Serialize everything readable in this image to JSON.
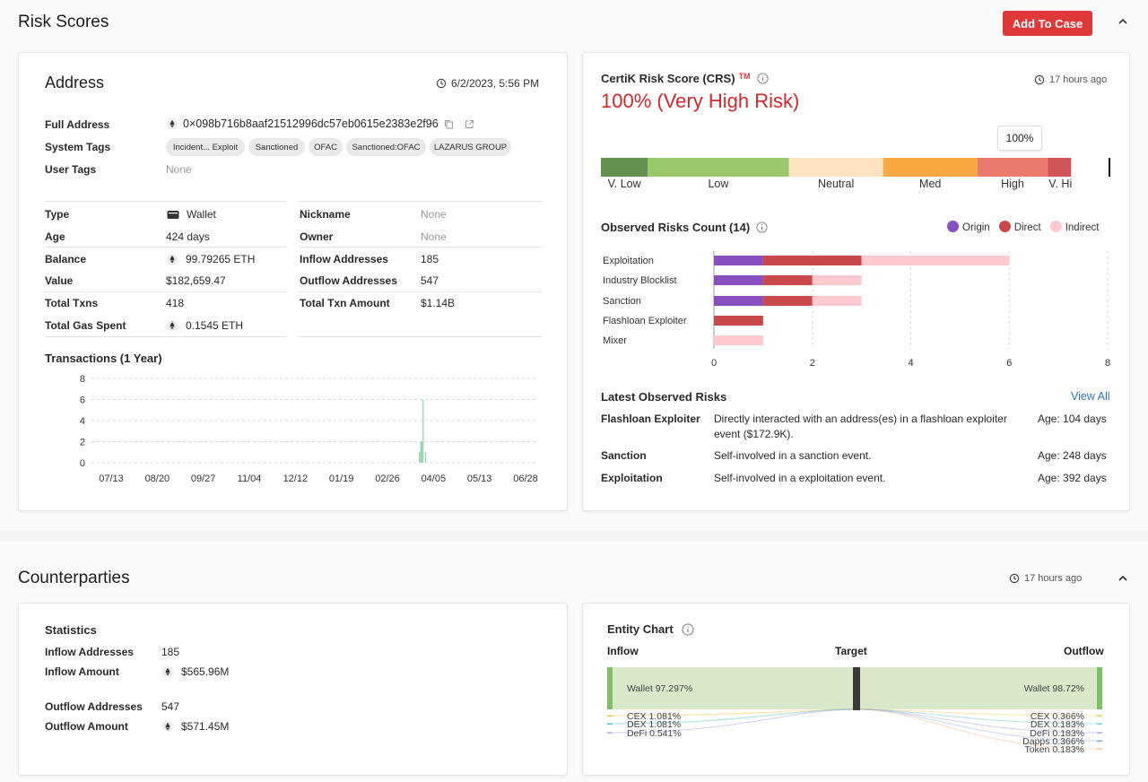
{
  "risk_scores": {
    "title": "Risk Scores",
    "add_to_case": "Add To Case"
  },
  "address_card": {
    "title": "Address",
    "timestamp": "6/2/2023, 5:56 PM",
    "full_address_label": "Full Address",
    "full_address": "0×098b716b8aaf21512996dc57eb0615e2383e2f96",
    "system_tags_label": "System Tags",
    "system_tags": [
      "Incident... Exploit",
      "Sanctioned",
      "OFAC",
      "Sanctioned:OFAC",
      "LAZARUS GROUP"
    ],
    "user_tags_label": "User Tags",
    "user_tags": "None",
    "left_fields": [
      {
        "label": "Type",
        "value": "Wallet"
      },
      {
        "label": "Age",
        "value": "424 days"
      },
      {
        "label": "Balance",
        "value": "99.79265 ETH"
      },
      {
        "label": "Value",
        "value": "$182,659.47"
      },
      {
        "label": "Total Txns",
        "value": "418"
      },
      {
        "label": "Total Gas Spent",
        "value": "0.1545 ETH"
      }
    ],
    "right_fields": [
      {
        "label": "Nickname",
        "value": "None"
      },
      {
        "label": "Owner",
        "value": "None"
      },
      {
        "label": "Inflow Addresses",
        "value": "185"
      },
      {
        "label": "Outflow Addresses",
        "value": "547"
      },
      {
        "label": "Total Txn Amount",
        "value": "$1.14B"
      }
    ],
    "transactions_title": "Transactions (1 Year)"
  },
  "chart_data": [
    {
      "type": "bar",
      "title": "Transactions (1 Year)",
      "categories": [
        "07/13",
        "08/20",
        "09/27",
        "11/04",
        "12/12",
        "01/19",
        "02/26",
        "04/05",
        "05/13",
        "06/28"
      ],
      "y_ticks": [
        0,
        2,
        4,
        6,
        8
      ],
      "ylim": [
        0,
        8
      ],
      "grid": true,
      "spikes": [
        {
          "x": "03/24",
          "value": 1
        },
        {
          "x": "03/25",
          "value": 2
        },
        {
          "x": "03/26",
          "value": 2
        },
        {
          "x": "03/27",
          "value": 6
        },
        {
          "x": "03/29",
          "value": 1
        }
      ],
      "color": "#8fcfae"
    },
    {
      "type": "bar",
      "title": "Observed Risks Count (14)",
      "orientation": "horizontal",
      "stacked": true,
      "categories": [
        "Exploitation",
        "Industry Blocklist",
        "Sanction",
        "Flashloan Exploiter",
        "Mixer"
      ],
      "series": [
        {
          "name": "Origin",
          "color": "#8a4fbf",
          "values": [
            1,
            1,
            1,
            0,
            0
          ]
        },
        {
          "name": "Direct",
          "color": "#c9494b",
          "values": [
            2,
            1,
            1,
            1,
            0
          ]
        },
        {
          "name": "Indirect",
          "color": "#ffc9cf",
          "values": [
            3,
            1,
            1,
            0,
            1
          ]
        }
      ],
      "x_ticks": [
        0,
        2,
        4,
        6,
        8
      ],
      "xlim": [
        0,
        8
      ],
      "legend": "top-right"
    }
  ],
  "crs_card": {
    "title": "CertiK Risk Score (CRS)",
    "tm": "TM",
    "updated": "17 hours ago",
    "score_text": "100% (Very High Risk)",
    "score_value": 100,
    "score_label": "100%",
    "risk_levels": [
      {
        "label": "V. Low",
        "color": "#64934f",
        "fraction": 0.092
      },
      {
        "label": "Low",
        "color": "#9bc76b",
        "fraction": 0.277
      },
      {
        "label": "Neutral",
        "color": "#fde3c0",
        "fraction": 0.185
      },
      {
        "label": "Med",
        "color": "#f7a841",
        "fraction": 0.185
      },
      {
        "label": "High",
        "color": "#e97a6c",
        "fraction": 0.138
      },
      {
        "label": "V. Hi",
        "color": "#d05558",
        "fraction": 0.046
      }
    ],
    "observed_title": "Observed Risks Count (14)",
    "legend": [
      "Origin",
      "Direct",
      "Indirect"
    ],
    "latest_title": "Latest Observed Risks",
    "view_all": "View All",
    "latest": [
      {
        "name": "Flashloan Exploiter",
        "desc": "Directly interacted with an address(es) in a flashloan exploiter event ($172.9K).",
        "age": "Age: 104 days"
      },
      {
        "name": "Sanction",
        "desc": "Self-involved in a sanction event.",
        "age": "Age: 248 days"
      },
      {
        "name": "Exploitation",
        "desc": "Self-involved in a exploitation event.",
        "age": "Age: 392 days"
      }
    ]
  },
  "counterparties": {
    "title": "Counterparties",
    "updated": "17 hours ago",
    "statistics_title": "Statistics",
    "inflow_addresses_label": "Inflow Addresses",
    "inflow_addresses": "185",
    "inflow_amount_label": "Inflow Amount",
    "inflow_amount": "$565.96M",
    "outflow_addresses_label": "Outflow Addresses",
    "outflow_addresses": "547",
    "outflow_amount_label": "Outflow Amount",
    "outflow_amount": "$571.45M",
    "entity_chart_title": "Entity Chart",
    "inflow_label": "Inflow",
    "target_label": "Target",
    "outflow_label": "Outflow",
    "inflow_items": [
      {
        "label": "Wallet 97.297%",
        "color": "#7cc067"
      },
      {
        "label": "CEX 1.081%",
        "color": "#f3c347"
      },
      {
        "label": "DEX 1.081%",
        "color": "#4fc1c9"
      },
      {
        "label": "DeFi 0.541%",
        "color": "#9c8fe0"
      }
    ],
    "outflow_items": [
      {
        "label": "Wallet 98.72%",
        "color": "#7cc067"
      },
      {
        "label": "CEX 0.366%",
        "color": "#f3c347"
      },
      {
        "label": "DEX 0.183%",
        "color": "#4fc1c9"
      },
      {
        "label": "DeFi 0.183%",
        "color": "#9c8fe0"
      },
      {
        "label": "Dapps 0.366%",
        "color": "#7ea4e6"
      },
      {
        "label": "Token 0.183%",
        "color": "#f2b27a"
      }
    ]
  }
}
